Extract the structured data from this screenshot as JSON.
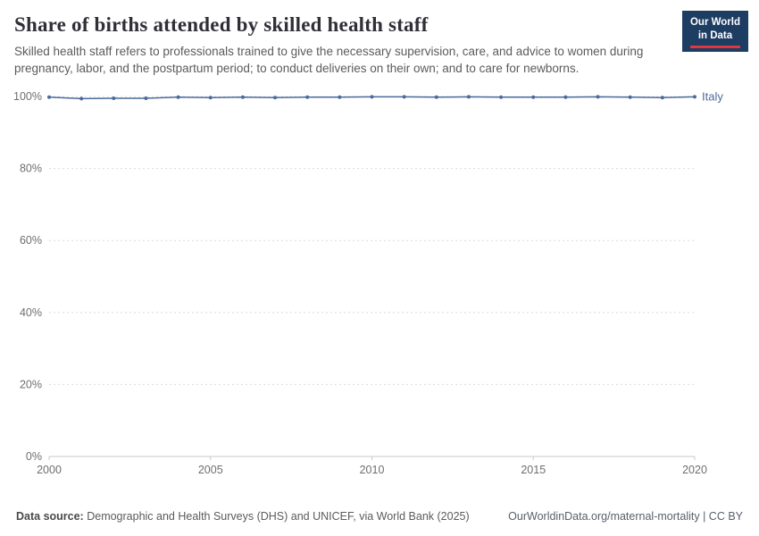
{
  "header": {
    "title": "Share of births attended by skilled health staff",
    "subtitle": "Skilled health staff refers to professionals trained to give the necessary supervision, care, and advice to women during pregnancy, labor, and the postpartum period; to conduct deliveries on their own; and to care for newborns.",
    "logo": {
      "line1": "Our World",
      "line2": "in Data"
    }
  },
  "chart_data": {
    "type": "line",
    "title": "Share of births attended by skilled health staff",
    "xlabel": "",
    "ylabel": "",
    "xlim": [
      2000,
      2020
    ],
    "ylim": [
      0,
      100
    ],
    "grid": true,
    "legend_position": "end-of-line-label",
    "yticks": {
      "values": [
        0,
        20,
        40,
        60,
        80,
        100
      ],
      "labels": [
        "0%",
        "20%",
        "40%",
        "60%",
        "80%",
        "100%"
      ]
    },
    "xticks": {
      "values": [
        2000,
        2005,
        2010,
        2015,
        2020
      ],
      "labels": [
        "2000",
        "2005",
        "2010",
        "2015",
        "2020"
      ]
    },
    "x": [
      2000,
      2001,
      2002,
      2003,
      2004,
      2005,
      2006,
      2007,
      2008,
      2009,
      2010,
      2011,
      2012,
      2013,
      2014,
      2015,
      2016,
      2017,
      2018,
      2019,
      2020
    ],
    "series": [
      {
        "name": "Italy",
        "color": "#4C6A9C",
        "values": [
          99.8,
          99.4,
          99.5,
          99.5,
          99.8,
          99.7,
          99.8,
          99.7,
          99.8,
          99.8,
          99.9,
          99.9,
          99.8,
          99.9,
          99.8,
          99.8,
          99.8,
          99.9,
          99.8,
          99.7,
          99.9
        ]
      }
    ],
    "colors": {
      "grid": "#dcdcdc",
      "axis": "#c8c8c8",
      "tick_label": "#6e6e6e"
    }
  },
  "footer": {
    "datasource_label": "Data source:",
    "datasource_text": "Demographic and Health Surveys (DHS) and UNICEF, via World Bank (2025)",
    "link_text": "OurWorldinData.org/maternal-mortality | CC BY"
  }
}
